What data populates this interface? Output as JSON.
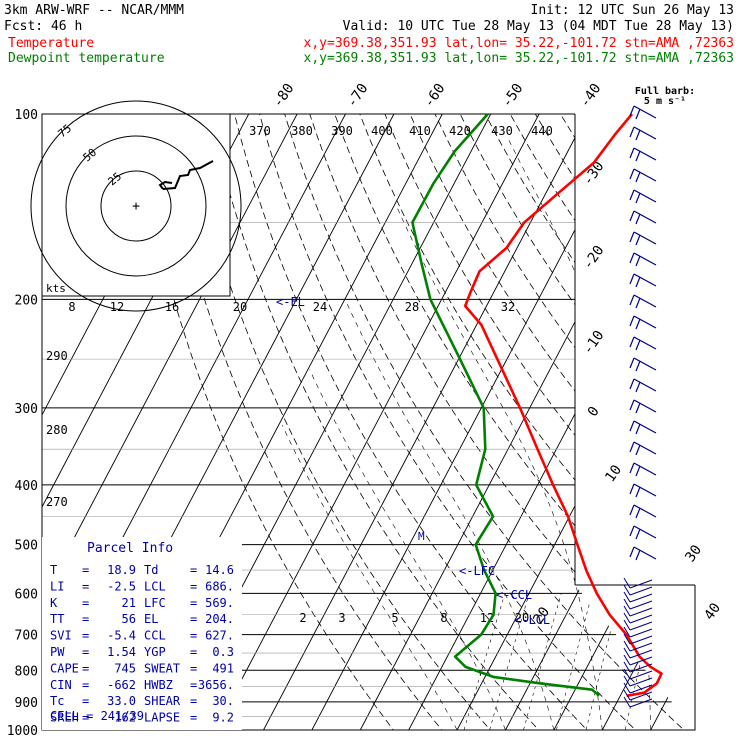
{
  "header": {
    "line1_left": "3km ARW-WRF -- NCAR/MMM",
    "line1_right": "Init: 12 UTC Sun 26 May 13",
    "line2_left": "Fcst:    46 h",
    "line2_right": "Valid: 10 UTC Tue 28 May 13 (04 MDT Tue 28 May 13)",
    "temp_label": "Temperature",
    "temp_info": "x,y=369.38,351.93   lat,lon= 35.22,-101.72  stn=AMA ,72363",
    "dew_label": "Dewpoint temperature",
    "dew_info": "x,y=369.38,351.93   lat,lon= 35.22,-101.72  stn=AMA ,72363"
  },
  "colors": {
    "temperature": "#ff0000",
    "dewpoint": "#008000",
    "parcel_info": "#0000aa",
    "barbs": "#00008b",
    "grid": "#000000"
  },
  "barb_legend": {
    "line1": "Full barb:",
    "line2": "5 m s⁻¹"
  },
  "hodograph": {
    "ring_labels": [
      "25",
      "50",
      "75"
    ],
    "kts_label": "kts"
  },
  "level_markers": [
    "<-EL",
    "<-LFC",
    "<-CCL",
    "<-LCL",
    "M"
  ],
  "parcel_info": {
    "title": "Parcel Info",
    "rows": [
      [
        "T",
        "18.9",
        "Td",
        "14.6"
      ],
      [
        "LI",
        "-2.5",
        "LCL",
        "686."
      ],
      [
        "K",
        "21",
        "LFC",
        "569."
      ],
      [
        "TT",
        "56",
        "EL",
        "204."
      ],
      [
        "SVI",
        "-5.4",
        "CCL",
        "627."
      ],
      [
        "PW",
        "1.54",
        "YGP",
        "0.3"
      ],
      [
        "CAPE",
        "745",
        "SWEAT",
        "491"
      ],
      [
        "CIN",
        "-662",
        "HWBZ",
        "3656."
      ],
      [
        "Tc",
        "33.0",
        "SHEAR",
        "30."
      ],
      [
        "SREH",
        "162",
        "LAPSE",
        "9.2"
      ]
    ],
    "cell": "CELL = 241/39"
  },
  "chart_data": {
    "type": "line",
    "title": "",
    "ylabel": "",
    "y_scale": "log-pressure (hPa)",
    "y_ticks": [
      100,
      200,
      300,
      400,
      500,
      600,
      700,
      800,
      900,
      1000
    ],
    "isotherm_labels": [
      -80,
      -70,
      -60,
      -50,
      -40,
      -30,
      -20,
      -10,
      0,
      10,
      20,
      30,
      40
    ],
    "theta_labels_top": [
      370,
      380,
      390,
      400,
      410,
      420,
      430,
      440
    ],
    "theta_labels_left": [
      290,
      280,
      270
    ],
    "mixing_ratio_labels_200": [
      8,
      12,
      16,
      20,
      24,
      28,
      32
    ],
    "mixing_ratio_labels_700": [
      2,
      3,
      5,
      8,
      12,
      20
    ],
    "grid": true,
    "series": [
      {
        "name": "Temperature",
        "x_unit": "degC",
        "points": [
          [
            880,
            21.3
          ],
          [
            870,
            24.6
          ],
          [
            840,
            26.2
          ],
          [
            810,
            26.1
          ],
          [
            790,
            23.1
          ],
          [
            760,
            19.7
          ],
          [
            700,
            14.6
          ],
          [
            650,
            9.0
          ],
          [
            600,
            4.0
          ],
          [
            550,
            -0.7
          ],
          [
            500,
            -5.3
          ],
          [
            450,
            -10.3
          ],
          [
            400,
            -16.8
          ],
          [
            350,
            -23.9
          ],
          [
            300,
            -32.0
          ],
          [
            250,
            -42.0
          ],
          [
            220,
            -49.0
          ],
          [
            205,
            -54.4
          ],
          [
            195,
            -54.8
          ],
          [
            180,
            -55.2
          ],
          [
            165,
            -52.2
          ],
          [
            150,
            -51.3
          ],
          [
            135,
            -47.6
          ],
          [
            120,
            -43.4
          ],
          [
            108,
            -42.1
          ],
          [
            100,
            -40.8
          ]
        ]
      },
      {
        "name": "Dewpoint temperature",
        "x_unit": "degC",
        "points": [
          [
            880,
            15.6
          ],
          [
            870,
            14.6
          ],
          [
            860,
            13.5
          ],
          [
            840,
            2.2
          ],
          [
            820,
            -8.3
          ],
          [
            790,
            -15.1
          ],
          [
            760,
            -18.4
          ],
          [
            700,
            -15.4
          ],
          [
            650,
            -15.0
          ],
          [
            600,
            -16.9
          ],
          [
            550,
            -21.8
          ],
          [
            500,
            -26.3
          ],
          [
            450,
            -25.8
          ],
          [
            400,
            -32.7
          ],
          [
            350,
            -34.7
          ],
          [
            300,
            -39.5
          ],
          [
            250,
            -49.7
          ],
          [
            200,
            -62.3
          ],
          [
            175,
            -68.0
          ],
          [
            150,
            -74.4
          ],
          [
            130,
            -74.3
          ],
          [
            115,
            -73.4
          ],
          [
            100,
            -70.6
          ]
        ]
      }
    ]
  }
}
